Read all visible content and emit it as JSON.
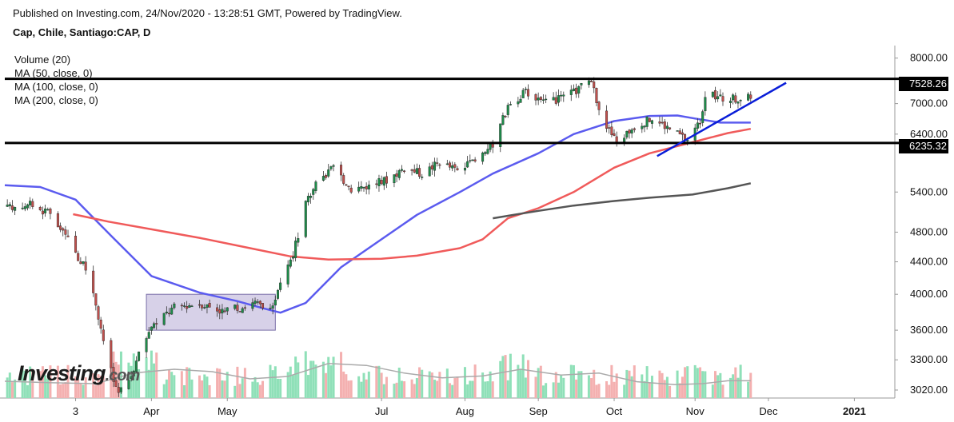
{
  "header": {
    "published": "Published on Investing.com, 24/Nov/2020 - 13:28:51 GMT, Powered by TradingView.",
    "symbol": "Cap, Chile, Santiago:CAP, D"
  },
  "legend": [
    "Volume (20)",
    "MA (50, close, 0)",
    "MA (100, close, 0)",
    "MA (200, close, 0)"
  ],
  "logo": {
    "text": "Investing",
    "suffix": ".com"
  },
  "colors": {
    "ma50": "#5b5bef",
    "ma100": "#f05a5a",
    "ma200": "#555555",
    "up_candle": "#1e8c4a",
    "down_candle": "#c0504d",
    "trendline": "#0a1ed8",
    "level_line": "#000000",
    "range_box": "#c9c2e0",
    "vol_up": "#8fe0b8",
    "vol_down": "#f4b0b0",
    "axis": "#999999"
  },
  "chart_data": {
    "type": "candlestick",
    "y_axis": {
      "scale": "log",
      "range": [
        2950,
        8300
      ],
      "ticks": [
        "8000.00",
        "7000.00",
        "6400.00",
        "5400.00",
        "4800.00",
        "4400.00",
        "4000.00",
        "3600.00",
        "3300.00",
        "3020.00"
      ],
      "tick_values": [
        8000,
        7000,
        6400,
        5400,
        4800,
        4400,
        4000,
        3600,
        3300,
        3020
      ]
    },
    "x_axis": {
      "range": [
        "2020-02-03",
        "2021-01-20"
      ],
      "ticks": [
        {
          "label": "3",
          "date": "2020-03-02"
        },
        {
          "label": "Apr",
          "date": "2020-04-01"
        },
        {
          "label": "May",
          "date": "2020-05-01"
        },
        {
          "label": "Jul",
          "date": "2020-07-01"
        },
        {
          "label": "Aug",
          "date": "2020-08-03"
        },
        {
          "label": "Sep",
          "date": "2020-09-01"
        },
        {
          "label": "Oct",
          "date": "2020-10-01"
        },
        {
          "label": "Nov",
          "date": "2020-11-02"
        },
        {
          "label": "Dec",
          "date": "2020-12-01"
        },
        {
          "label": "2021",
          "date": "2021-01-04"
        }
      ]
    },
    "price_levels": [
      {
        "label": "7528.26",
        "value": 7528.26
      },
      {
        "label": "6235.32",
        "value": 6235.32
      }
    ],
    "consolidation_box": {
      "start": "2020-03-30",
      "end": "2020-05-20",
      "low": 3600,
      "high": 4000
    },
    "trendline": {
      "start": [
        "2020-10-18",
        6000
      ],
      "end": [
        "2020-12-08",
        7440
      ]
    },
    "close_anchors": [
      [
        "2020-02-04",
        5150
      ],
      [
        "2020-02-14",
        5200
      ],
      [
        "2020-02-21",
        5050
      ],
      [
        "2020-02-28",
        4700
      ],
      [
        "2020-03-06",
        4300
      ],
      [
        "2020-03-10",
        3900
      ],
      [
        "2020-03-13",
        3500
      ],
      [
        "2020-03-17",
        3100
      ],
      [
        "2020-03-19",
        2990
      ],
      [
        "2020-03-23",
        3100
      ],
      [
        "2020-03-27",
        3350
      ],
      [
        "2020-04-01",
        3650
      ],
      [
        "2020-04-10",
        3850
      ],
      [
        "2020-04-20",
        3900
      ],
      [
        "2020-04-30",
        3800
      ],
      [
        "2020-05-12",
        3900
      ],
      [
        "2020-05-18",
        3800
      ],
      [
        "2020-05-22",
        4100
      ],
      [
        "2020-05-27",
        4500
      ],
      [
        "2020-06-01",
        5200
      ],
      [
        "2020-06-05",
        5500
      ],
      [
        "2020-06-12",
        5800
      ],
      [
        "2020-06-19",
        5450
      ],
      [
        "2020-06-26",
        5500
      ],
      [
        "2020-07-03",
        5600
      ],
      [
        "2020-07-10",
        5800
      ],
      [
        "2020-07-17",
        5700
      ],
      [
        "2020-07-24",
        5900
      ],
      [
        "2020-07-31",
        5750
      ],
      [
        "2020-08-07",
        5900
      ],
      [
        "2020-08-14",
        6200
      ],
      [
        "2020-08-18",
        6700
      ],
      [
        "2020-08-21",
        7000
      ],
      [
        "2020-08-27",
        7250
      ],
      [
        "2020-09-03",
        7000
      ],
      [
        "2020-09-10",
        7100
      ],
      [
        "2020-09-17",
        7300
      ],
      [
        "2020-09-21",
        7550
      ],
      [
        "2020-09-24",
        7100
      ],
      [
        "2020-09-28",
        6550
      ],
      [
        "2020-10-02",
        6250
      ],
      [
        "2020-10-09",
        6550
      ],
      [
        "2020-10-16",
        6700
      ],
      [
        "2020-10-23",
        6500
      ],
      [
        "2020-10-30",
        6300
      ],
      [
        "2020-11-04",
        6650
      ],
      [
        "2020-11-06",
        7200
      ],
      [
        "2020-11-13",
        7100
      ],
      [
        "2020-11-20",
        7100
      ],
      [
        "2020-11-24",
        7130
      ]
    ],
    "series": [
      {
        "name": "MA (50, close, 0)",
        "points": [
          [
            "2020-02-03",
            5510
          ],
          [
            "2020-02-17",
            5480
          ],
          [
            "2020-03-02",
            5280
          ],
          [
            "2020-03-16",
            4750
          ],
          [
            "2020-04-01",
            4220
          ],
          [
            "2020-04-20",
            4020
          ],
          [
            "2020-05-05",
            3920
          ],
          [
            "2020-05-15",
            3840
          ],
          [
            "2020-05-22",
            3790
          ],
          [
            "2020-06-01",
            3900
          ],
          [
            "2020-06-15",
            4330
          ],
          [
            "2020-07-01",
            4700
          ],
          [
            "2020-07-15",
            5050
          ],
          [
            "2020-08-01",
            5400
          ],
          [
            "2020-08-14",
            5700
          ],
          [
            "2020-09-01",
            6050
          ],
          [
            "2020-09-15",
            6400
          ],
          [
            "2020-10-01",
            6650
          ],
          [
            "2020-10-15",
            6750
          ],
          [
            "2020-10-26",
            6760
          ],
          [
            "2020-11-02",
            6700
          ],
          [
            "2020-11-12",
            6620
          ],
          [
            "2020-11-24",
            6620
          ]
        ]
      },
      {
        "name": "MA (100, close, 0)",
        "points": [
          [
            "2020-03-01",
            5060
          ],
          [
            "2020-03-15",
            4950
          ],
          [
            "2020-04-01",
            4840
          ],
          [
            "2020-04-20",
            4720
          ],
          [
            "2020-05-10",
            4580
          ],
          [
            "2020-05-26",
            4470
          ],
          [
            "2020-06-10",
            4430
          ],
          [
            "2020-07-01",
            4440
          ],
          [
            "2020-07-15",
            4480
          ],
          [
            "2020-08-01",
            4580
          ],
          [
            "2020-08-10",
            4700
          ],
          [
            "2020-08-20",
            5000
          ],
          [
            "2020-09-01",
            5150
          ],
          [
            "2020-09-15",
            5400
          ],
          [
            "2020-10-01",
            5800
          ],
          [
            "2020-10-15",
            6050
          ],
          [
            "2020-11-01",
            6250
          ],
          [
            "2020-11-15",
            6420
          ],
          [
            "2020-11-24",
            6500
          ]
        ]
      },
      {
        "name": "MA (200, close, 0)",
        "points": [
          [
            "2020-08-14",
            5000
          ],
          [
            "2020-09-01",
            5110
          ],
          [
            "2020-09-15",
            5190
          ],
          [
            "2020-10-01",
            5260
          ],
          [
            "2020-10-15",
            5310
          ],
          [
            "2020-11-01",
            5360
          ],
          [
            "2020-11-15",
            5460
          ],
          [
            "2020-11-24",
            5540
          ]
        ]
      }
    ],
    "volume_ma": [
      [
        "2020-02-03",
        0.35
      ],
      [
        "2020-02-20",
        0.32
      ],
      [
        "2020-03-10",
        0.3
      ],
      [
        "2020-03-25",
        0.52
      ],
      [
        "2020-04-10",
        0.6
      ],
      [
        "2020-04-25",
        0.55
      ],
      [
        "2020-05-10",
        0.4
      ],
      [
        "2020-05-25",
        0.45
      ],
      [
        "2020-06-10",
        0.72
      ],
      [
        "2020-06-25",
        0.68
      ],
      [
        "2020-07-10",
        0.52
      ],
      [
        "2020-07-25",
        0.42
      ],
      [
        "2020-08-10",
        0.46
      ],
      [
        "2020-08-25",
        0.6
      ],
      [
        "2020-09-10",
        0.48
      ],
      [
        "2020-09-25",
        0.52
      ],
      [
        "2020-10-10",
        0.34
      ],
      [
        "2020-10-25",
        0.28
      ],
      [
        "2020-11-05",
        0.3
      ],
      [
        "2020-11-15",
        0.36
      ],
      [
        "2020-11-24",
        0.36
      ]
    ]
  }
}
